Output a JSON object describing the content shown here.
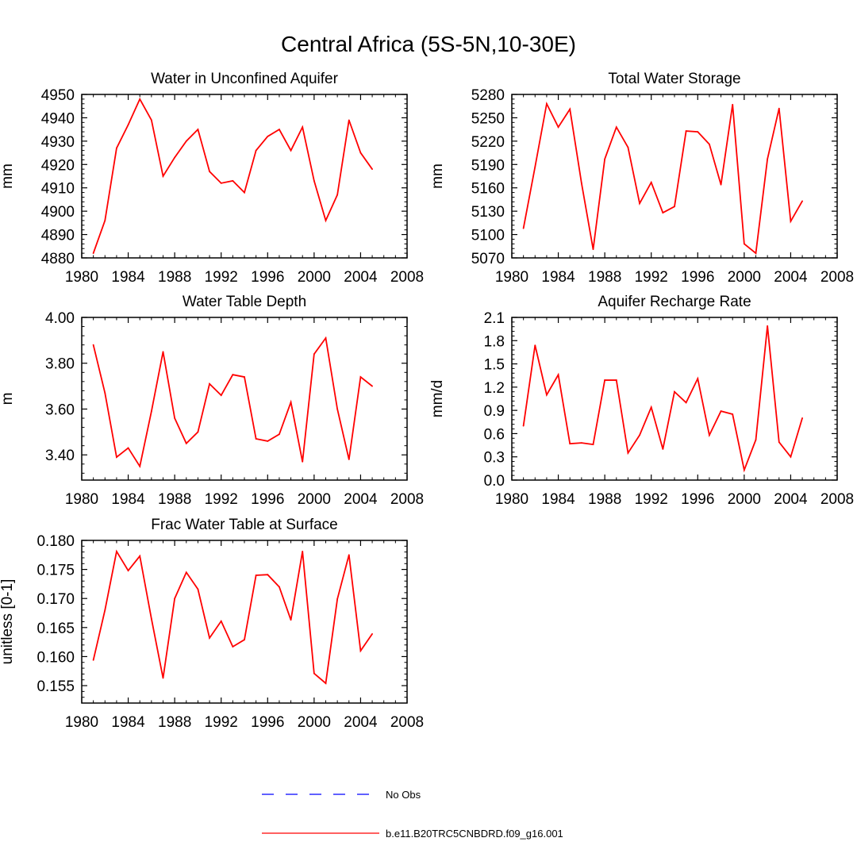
{
  "figure_title": "Central Africa (5S-5N,10-30E)",
  "colors": {
    "model_line": "#ff0000",
    "obs_line": "#0000ff",
    "axis": "#000000"
  },
  "legend": {
    "obs_label": "No Obs",
    "model_label": "b.e11.B20TRC5CNBDRD.f09_g16.001"
  },
  "chart_data": [
    {
      "type": "line",
      "title": "Water in Unconfined Aquifer",
      "ylabel": "mm",
      "xlim": [
        1980,
        2008
      ],
      "ylim": [
        4880,
        4950
      ],
      "xticks": [
        1980,
        1984,
        1988,
        1992,
        1996,
        2000,
        2004,
        2008
      ],
      "yticks": [
        4880,
        4890,
        4900,
        4910,
        4920,
        4930,
        4940,
        4950
      ],
      "ytick_labels": [
        "4880",
        "4890",
        "4900",
        "4910",
        "4920",
        "4930",
        "4940",
        "4950"
      ],
      "series": [
        {
          "name": "b.e11.B20TRC5CNBDRD.f09_g16.001",
          "x": [
            1981,
            1982,
            1983,
            1984,
            1985,
            1986,
            1987,
            1988,
            1989,
            1990,
            1991,
            1992,
            1993,
            1994,
            1995,
            1996,
            1997,
            1998,
            1999,
            2000,
            2001,
            2002,
            2003,
            2004,
            2005
          ],
          "values": [
            4882,
            4896,
            4927,
            4937,
            4948,
            4939,
            4915,
            4923,
            4930,
            4935,
            4917,
            4912,
            4913,
            4908,
            4926,
            4932,
            4935,
            4926,
            4936,
            4913,
            4896,
            4907,
            4939,
            4925,
            4918
          ]
        }
      ]
    },
    {
      "type": "line",
      "title": "Total Water Storage",
      "ylabel": "mm",
      "xlim": [
        1980,
        2008
      ],
      "ylim": [
        5070,
        5280
      ],
      "xticks": [
        1980,
        1984,
        1988,
        1992,
        1996,
        2000,
        2004,
        2008
      ],
      "yticks": [
        5070,
        5100,
        5130,
        5160,
        5190,
        5220,
        5250,
        5280
      ],
      "ytick_labels": [
        "5070",
        "5100",
        "5130",
        "5160",
        "5190",
        "5220",
        "5250",
        "5280"
      ],
      "series": [
        {
          "name": "b.e11.B20TRC5CNBDRD.f09_g16.001",
          "x": [
            1981,
            1982,
            1983,
            1984,
            1985,
            1986,
            1987,
            1988,
            1989,
            1990,
            1991,
            1992,
            1993,
            1994,
            1995,
            1996,
            1997,
            1998,
            1999,
            2000,
            2001,
            2002,
            2003,
            2004,
            2005
          ],
          "values": [
            5108,
            5187,
            5268,
            5238,
            5261,
            5166,
            5081,
            5197,
            5238,
            5212,
            5140,
            5167,
            5128,
            5136,
            5233,
            5232,
            5216,
            5164,
            5267,
            5088,
            5076,
            5197,
            5262,
            5117,
            5143
          ]
        }
      ]
    },
    {
      "type": "line",
      "title": "Water Table Depth",
      "ylabel": "m",
      "xlim": [
        1980,
        2008
      ],
      "ylim": [
        3.29,
        4.0
      ],
      "xticks": [
        1980,
        1984,
        1988,
        1992,
        1996,
        2000,
        2004,
        2008
      ],
      "yticks": [
        3.4,
        3.6,
        3.8,
        4.0
      ],
      "ytick_labels": [
        "3.40",
        "3.60",
        "3.80",
        "4.00"
      ],
      "series": [
        {
          "name": "b.e11.B20TRC5CNBDRD.f09_g16.001",
          "x": [
            1981,
            1982,
            1983,
            1984,
            1985,
            1986,
            1987,
            1988,
            1989,
            1990,
            1991,
            1992,
            1993,
            1994,
            1995,
            1996,
            1997,
            1998,
            1999,
            2000,
            2001,
            2002,
            2003,
            2004,
            2005
          ],
          "values": [
            3.88,
            3.67,
            3.39,
            3.43,
            3.35,
            3.59,
            3.85,
            3.56,
            3.45,
            3.5,
            3.71,
            3.66,
            3.75,
            3.74,
            3.47,
            3.46,
            3.49,
            3.63,
            3.37,
            3.84,
            3.91,
            3.6,
            3.38,
            3.74,
            3.7
          ]
        }
      ]
    },
    {
      "type": "line",
      "title": "Aquifer Recharge Rate",
      "ylabel": "mm/d",
      "xlim": [
        1980,
        2008
      ],
      "ylim": [
        0.0,
        2.1
      ],
      "xticks": [
        1980,
        1984,
        1988,
        1992,
        1996,
        2000,
        2004,
        2008
      ],
      "yticks": [
        0.0,
        0.3,
        0.6,
        0.9,
        1.2,
        1.5,
        1.8,
        2.1
      ],
      "ytick_labels": [
        "0.0",
        "0.3",
        "0.6",
        "0.9",
        "1.2",
        "1.5",
        "1.8",
        "2.1"
      ],
      "series": [
        {
          "name": "b.e11.B20TRC5CNBDRD.f09_g16.001",
          "x": [
            1981,
            1982,
            1983,
            1984,
            1985,
            1986,
            1987,
            1988,
            1989,
            1990,
            1991,
            1992,
            1993,
            1994,
            1995,
            1996,
            1997,
            1998,
            1999,
            2000,
            2001,
            2002,
            2003,
            2004,
            2005
          ],
          "values": [
            0.7,
            1.74,
            1.1,
            1.36,
            0.47,
            0.48,
            0.46,
            1.29,
            1.29,
            0.35,
            0.58,
            0.94,
            0.4,
            1.14,
            1.0,
            1.31,
            0.58,
            0.89,
            0.85,
            0.13,
            0.52,
            1.99,
            0.49,
            0.3,
            0.8
          ]
        }
      ]
    },
    {
      "type": "line",
      "title": "Frac Water Table at Surface",
      "ylabel": "unitless [0-1]",
      "xlim": [
        1980,
        2008
      ],
      "ylim": [
        0.152,
        0.18
      ],
      "xticks": [
        1980,
        1984,
        1988,
        1992,
        1996,
        2000,
        2004,
        2008
      ],
      "yticks": [
        0.155,
        0.16,
        0.165,
        0.17,
        0.175,
        0.18
      ],
      "ytick_labels": [
        "0.155",
        "0.160",
        "0.165",
        "0.170",
        "0.175",
        "0.180"
      ],
      "series": [
        {
          "name": "b.e11.B20TRC5CNBDRD.f09_g16.001",
          "x": [
            1981,
            1982,
            1983,
            1984,
            1985,
            1986,
            1987,
            1988,
            1989,
            1990,
            1991,
            1992,
            1993,
            1994,
            1995,
            1996,
            1997,
            1998,
            1999,
            2000,
            2001,
            2002,
            2003,
            2004,
            2005
          ],
          "values": [
            0.1594,
            0.168,
            0.1781,
            0.1748,
            0.1773,
            0.1665,
            0.1563,
            0.17,
            0.1745,
            0.1716,
            0.1632,
            0.1661,
            0.1617,
            0.1629,
            0.174,
            0.1741,
            0.172,
            0.1663,
            0.1781,
            0.1571,
            0.1554,
            0.1699,
            0.1775,
            0.161,
            0.1639
          ]
        }
      ]
    }
  ]
}
